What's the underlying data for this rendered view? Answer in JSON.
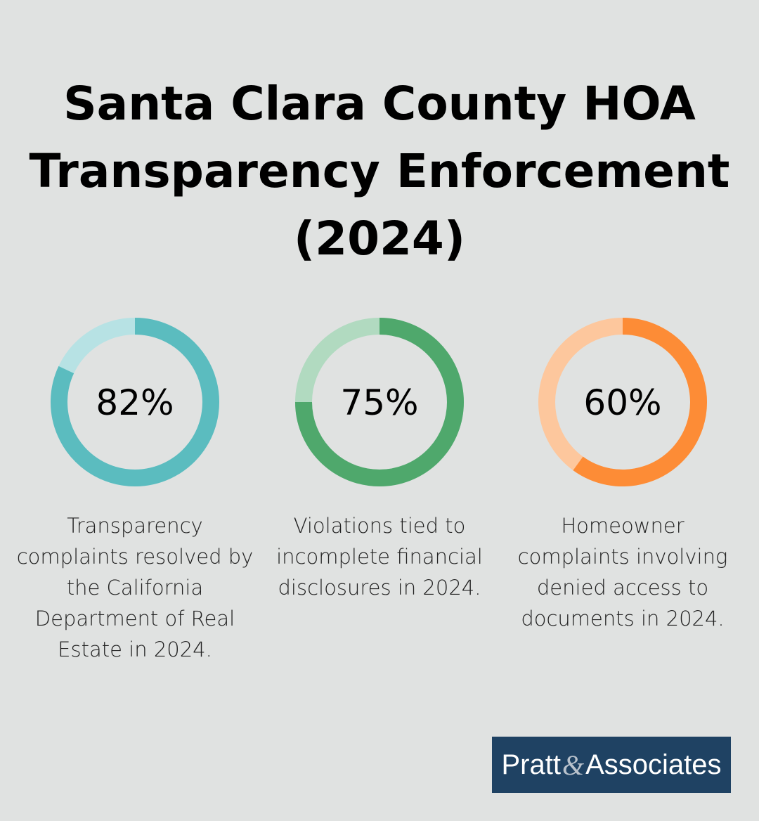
{
  "title_lines": [
    "Santa Clara County HOA",
    "Transparency Enforcement",
    "(2024)"
  ],
  "chart_data": [
    {
      "type": "pie",
      "subtype": "donut",
      "value": 82,
      "max": 100,
      "label": "82%",
      "caption": "Transparency complaints resolved by the California Department of Real Estate in 2024.",
      "color": "#5bbcbf",
      "track_color": "#b7e2e4"
    },
    {
      "type": "pie",
      "subtype": "donut",
      "value": 75,
      "max": 100,
      "label": "75%",
      "caption": "Violations tied to incomplete financial disclosures in 2024.",
      "color": "#4fa86c",
      "track_color": "#b1dac0"
    },
    {
      "type": "pie",
      "subtype": "donut",
      "value": 60,
      "max": 100,
      "label": "60%",
      "caption": "Homeowner complaints involving denied access to documents in 2024.",
      "color": "#fd8c36",
      "track_color": "#fdc79d"
    }
  ],
  "logo": {
    "text_left": "Pratt",
    "ampersand": "&",
    "text_right": "Associates",
    "background": "#1f4263"
  }
}
